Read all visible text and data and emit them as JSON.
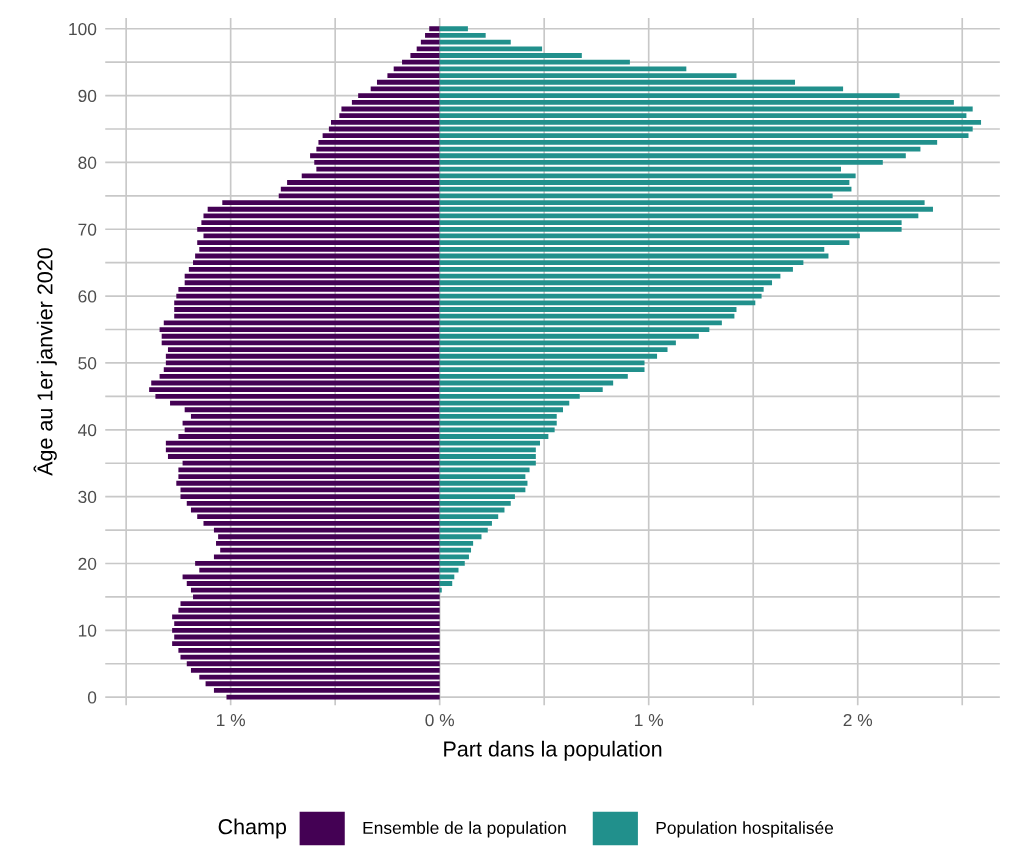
{
  "chart_data": {
    "type": "bar",
    "orientation": "horizontal",
    "stacked": true,
    "xlabel": "Part dans la population",
    "ylabel": "Âge au 1er janvier 2020",
    "legend_title": "Champ",
    "legend": "bottom",
    "grid": true,
    "x": [
      0,
      1,
      2,
      3,
      4,
      5,
      6,
      7,
      8,
      9,
      10,
      11,
      12,
      13,
      14,
      15,
      16,
      17,
      18,
      19,
      20,
      21,
      22,
      23,
      24,
      25,
      26,
      27,
      28,
      29,
      30,
      31,
      32,
      33,
      34,
      35,
      36,
      37,
      38,
      39,
      40,
      41,
      42,
      43,
      44,
      45,
      46,
      47,
      48,
      49,
      50,
      51,
      52,
      53,
      54,
      55,
      56,
      57,
      58,
      59,
      60,
      61,
      62,
      63,
      64,
      65,
      66,
      67,
      68,
      69,
      70,
      71,
      72,
      73,
      74,
      75,
      76,
      77,
      78,
      79,
      80,
      81,
      82,
      83,
      84,
      85,
      86,
      87,
      88,
      89,
      90,
      91,
      92,
      93,
      94,
      95,
      96,
      97,
      98,
      99,
      100
    ],
    "series": [
      {
        "name": "Ensemble de la population",
        "color": "#440154",
        "values": [
          -1.02,
          -1.08,
          -1.12,
          -1.15,
          -1.19,
          -1.21,
          -1.24,
          -1.25,
          -1.28,
          -1.27,
          -1.28,
          -1.27,
          -1.28,
          -1.25,
          -1.24,
          -1.18,
          -1.19,
          -1.21,
          -1.23,
          -1.15,
          -1.17,
          -1.08,
          -1.05,
          -1.07,
          -1.06,
          -1.08,
          -1.13,
          -1.16,
          -1.19,
          -1.21,
          -1.24,
          -1.24,
          -1.26,
          -1.25,
          -1.25,
          -1.23,
          -1.3,
          -1.31,
          -1.31,
          -1.25,
          -1.22,
          -1.23,
          -1.19,
          -1.22,
          -1.29,
          -1.36,
          -1.39,
          -1.38,
          -1.34,
          -1.32,
          -1.31,
          -1.31,
          -1.3,
          -1.33,
          -1.33,
          -1.34,
          -1.32,
          -1.27,
          -1.27,
          -1.27,
          -1.26,
          -1.25,
          -1.22,
          -1.22,
          -1.2,
          -1.18,
          -1.17,
          -1.15,
          -1.16,
          -1.13,
          -1.16,
          -1.14,
          -1.13,
          -1.11,
          -1.04,
          -0.77,
          -0.76,
          -0.73,
          -0.66,
          -0.59,
          -0.6,
          -0.62,
          -0.59,
          -0.58,
          -0.56,
          -0.53,
          -0.52,
          -0.48,
          -0.47,
          -0.42,
          -0.39,
          -0.33,
          -0.3,
          -0.25,
          -0.22,
          -0.18,
          -0.14,
          -0.11,
          -0.09,
          -0.07,
          -0.05
        ]
      },
      {
        "name": "Population hospitalisée",
        "color": "#21908c",
        "values": [
          0,
          0,
          0,
          0,
          0,
          0,
          0,
          0,
          0,
          0,
          0,
          0,
          0,
          0,
          0,
          0,
          0.01,
          0.06,
          0.07,
          0.09,
          0.12,
          0.14,
          0.15,
          0.16,
          0.2,
          0.23,
          0.25,
          0.28,
          0.31,
          0.34,
          0.36,
          0.41,
          0.42,
          0.41,
          0.43,
          0.46,
          0.46,
          0.46,
          0.48,
          0.52,
          0.55,
          0.56,
          0.56,
          0.59,
          0.62,
          0.67,
          0.78,
          0.83,
          0.9,
          0.98,
          0.98,
          1.04,
          1.09,
          1.13,
          1.24,
          1.29,
          1.35,
          1.41,
          1.42,
          1.51,
          1.54,
          1.55,
          1.59,
          1.63,
          1.69,
          1.74,
          1.86,
          1.84,
          1.96,
          2.01,
          2.21,
          2.21,
          2.29,
          2.36,
          2.32,
          1.88,
          1.97,
          1.96,
          1.99,
          1.92,
          2.12,
          2.23,
          2.3,
          2.38,
          2.53,
          2.55,
          2.59,
          2.52,
          2.55,
          2.46,
          2.2,
          1.93,
          1.7,
          1.42,
          1.18,
          0.91,
          0.68,
          0.49,
          0.34,
          0.22,
          0.135
        ]
      }
    ],
    "xlim": [
      -1.6,
      2.68
    ],
    "xticks": [
      {
        "value": -1.5,
        "label": null
      },
      {
        "value": -1,
        "label": "1 %"
      },
      {
        "value": -0.5,
        "label": null
      },
      {
        "value": 0,
        "label": "0 %"
      },
      {
        "value": 0.5,
        "label": null
      },
      {
        "value": 1,
        "label": "1 %"
      },
      {
        "value": 1.5,
        "label": null
      },
      {
        "value": 2,
        "label": "2 %"
      },
      {
        "value": 2.5,
        "label": null
      }
    ],
    "ylim": [
      -1.2,
      101.6
    ],
    "yticks": [
      0,
      {
        "value": 5,
        "label": null
      },
      10,
      {
        "value": 15,
        "label": null
      },
      20,
      {
        "value": 25,
        "label": null
      },
      30,
      {
        "value": 35,
        "label": null
      },
      40,
      {
        "value": 45,
        "label": null
      },
      50,
      {
        "value": 55,
        "label": null
      },
      60,
      {
        "value": 65,
        "label": null
      },
      70,
      {
        "value": 75,
        "label": null
      },
      80,
      {
        "value": 85,
        "label": null
      },
      90,
      {
        "value": 95,
        "label": null
      },
      100
    ]
  }
}
